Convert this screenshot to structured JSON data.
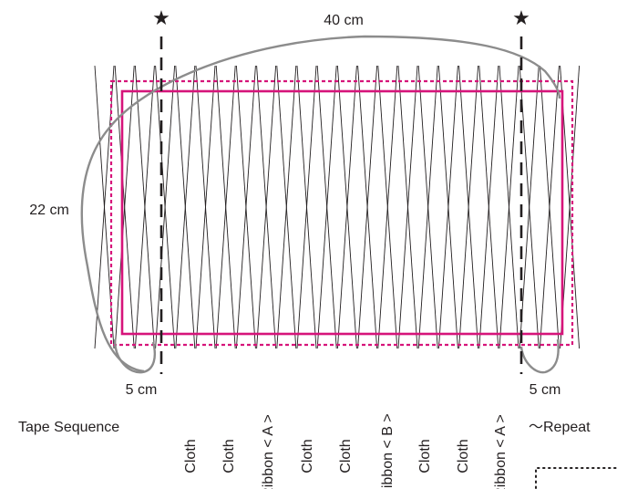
{
  "dimensions": {
    "width_label": "40 cm",
    "height_label": "22 cm",
    "left_margin_label": "5 cm",
    "right_margin_label": "5 cm"
  },
  "markers": {
    "star_symbol": "★"
  },
  "tape_sequence": {
    "title": "Tape Sequence",
    "items": [
      "Cloth",
      "Cloth",
      "Ribbon < A >",
      "Cloth",
      "Cloth",
      "Ribbon < B >",
      "Cloth",
      "Cloth",
      "Ribbon < A >"
    ],
    "repeat_label": "～Repeat"
  },
  "colors": {
    "line": "#231f20",
    "magenta": "#d6147a",
    "outline_gray": "#8c8c8c"
  }
}
